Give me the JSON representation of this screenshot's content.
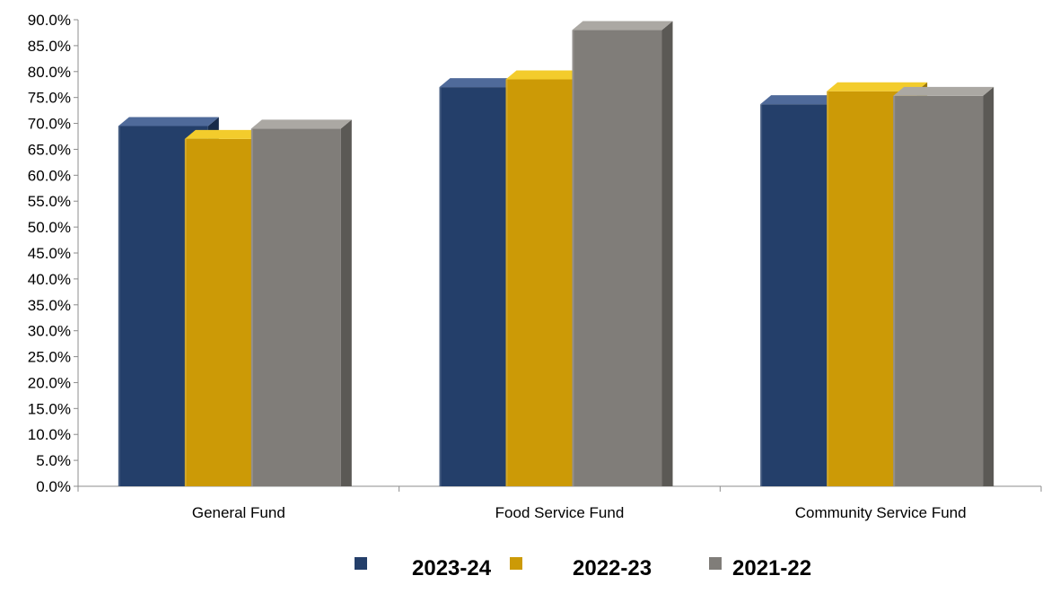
{
  "chart_data": {
    "type": "bar",
    "categories": [
      "General Fund",
      "Food Service Fund",
      "Community Service Fund"
    ],
    "series": [
      {
        "name": "2023-24",
        "values": [
          69.5,
          77.0,
          73.7
        ],
        "color": "#243f6a",
        "top_color": "#4f6a9a",
        "side_color": "#172b4a"
      },
      {
        "name": "2022-23",
        "values": [
          67.0,
          78.5,
          76.2
        ],
        "color": "#cc9a06",
        "top_color": "#f3cc2c",
        "side_color": "#9a7404"
      },
      {
        "name": "2021-22",
        "values": [
          69.0,
          88.0,
          75.3
        ],
        "color": "#807d79",
        "top_color": "#aba8a3",
        "side_color": "#5b5955"
      }
    ],
    "ylim": [
      0,
      90
    ],
    "yticks": [
      "0.0%",
      "5.0%",
      "10.0%",
      "15.0%",
      "20.0%",
      "25.0%",
      "30.0%",
      "35.0%",
      "40.0%",
      "45.0%",
      "50.0%",
      "55.0%",
      "60.0%",
      "65.0%",
      "70.0%",
      "75.0%",
      "80.0%",
      "85.0%",
      "90.0%"
    ],
    "ytick_step": 5,
    "grid": false,
    "legend_position": "bottom"
  }
}
